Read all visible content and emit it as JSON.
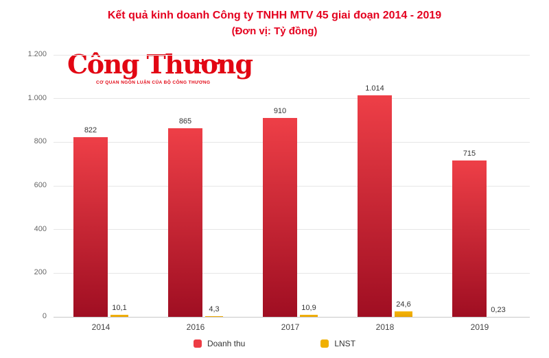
{
  "chart_data": {
    "type": "bar",
    "title": "Kết quả kinh doanh Công ty TNHH MTV 45 giai đoạn 2014 - 2019",
    "subtitle": "(Đơn vị: Tỷ đồng)",
    "categories": [
      "2014",
      "2016",
      "2017",
      "2018",
      "2019"
    ],
    "series": [
      {
        "name": "Doanh thu",
        "key": "doanh-thu",
        "values": [
          822,
          865,
          910,
          1014,
          715
        ],
        "labels": [
          "822",
          "865",
          "910",
          "1.014",
          "715"
        ],
        "color_top": "#ee3f47",
        "color_bottom": "#9f0e22",
        "legend_color": "#ed3c44"
      },
      {
        "name": "LNST",
        "key": "lnst",
        "values": [
          10.1,
          4.3,
          10.9,
          24.6,
          0.23
        ],
        "labels": [
          "10,1",
          "4,3",
          "10,9",
          "24,6",
          "0,23"
        ],
        "color_top": "#f5b50a",
        "color_bottom": "#e9a300",
        "legend_color": "#f0b000"
      }
    ],
    "ylim": [
      0,
      1200
    ],
    "yticks": {
      "values": [
        0,
        200,
        400,
        600,
        800,
        1000,
        1200
      ],
      "labels": [
        "0",
        "200",
        "400",
        "600",
        "800",
        "1.000",
        "1.200"
      ]
    },
    "grid": "horizontal",
    "legend_position": "bottom"
  },
  "logo": {
    "text": "Công Thương",
    "tagline": "CƠ QUAN NGÔN LUẬN CỦA BỘ CÔNG THƯƠNG"
  },
  "colors": {
    "title_red": "#e4001e",
    "logo_red": "#e20613",
    "grid_gray": "#e6e6e6",
    "axis_gray": "#c8c8c8",
    "tick_gray": "#666666",
    "label_dark": "#333333"
  }
}
